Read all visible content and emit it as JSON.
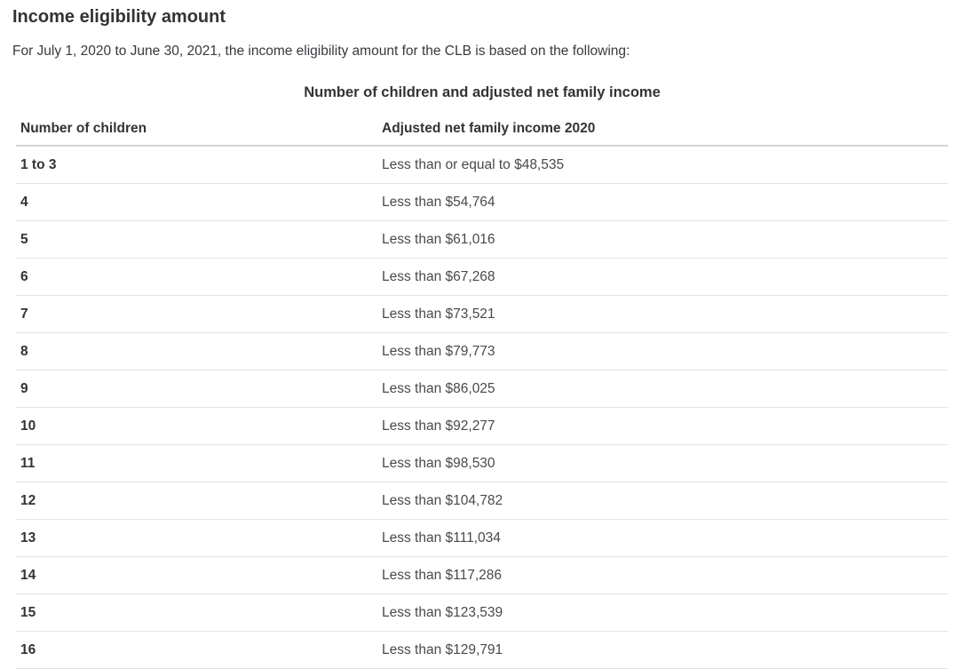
{
  "header": {
    "title": "Income eligibility amount",
    "intro": "For July 1, 2020 to June 30, 2021, the income eligibility amount for the CLB is based on the following:"
  },
  "table": {
    "caption": "Number of children and adjusted net family income",
    "columns": [
      "Number of children",
      "Adjusted net family income 2020"
    ],
    "rows": [
      [
        "1 to 3",
        "Less than or equal to $48,535"
      ],
      [
        "4",
        "Less than $54,764"
      ],
      [
        "5",
        "Less than $61,016"
      ],
      [
        "6",
        "Less than $67,268"
      ],
      [
        "7",
        "Less than $73,521"
      ],
      [
        "8",
        "Less than $79,773"
      ],
      [
        "9",
        "Less than $86,025"
      ],
      [
        "10",
        "Less than $92,277"
      ],
      [
        "11",
        "Less than $98,530"
      ],
      [
        "12",
        "Less than $104,782"
      ],
      [
        "13",
        "Less than $111,034"
      ],
      [
        "14",
        "Less than $117,286"
      ],
      [
        "15",
        "Less than $123,539"
      ],
      [
        "16",
        "Less than $129,791"
      ]
    ]
  },
  "colors": {
    "heading_text": "#333333",
    "body_text": "#47494d",
    "header_border": "#d4d4d4",
    "row_border": "#e2e2e2",
    "background": "#ffffff"
  }
}
